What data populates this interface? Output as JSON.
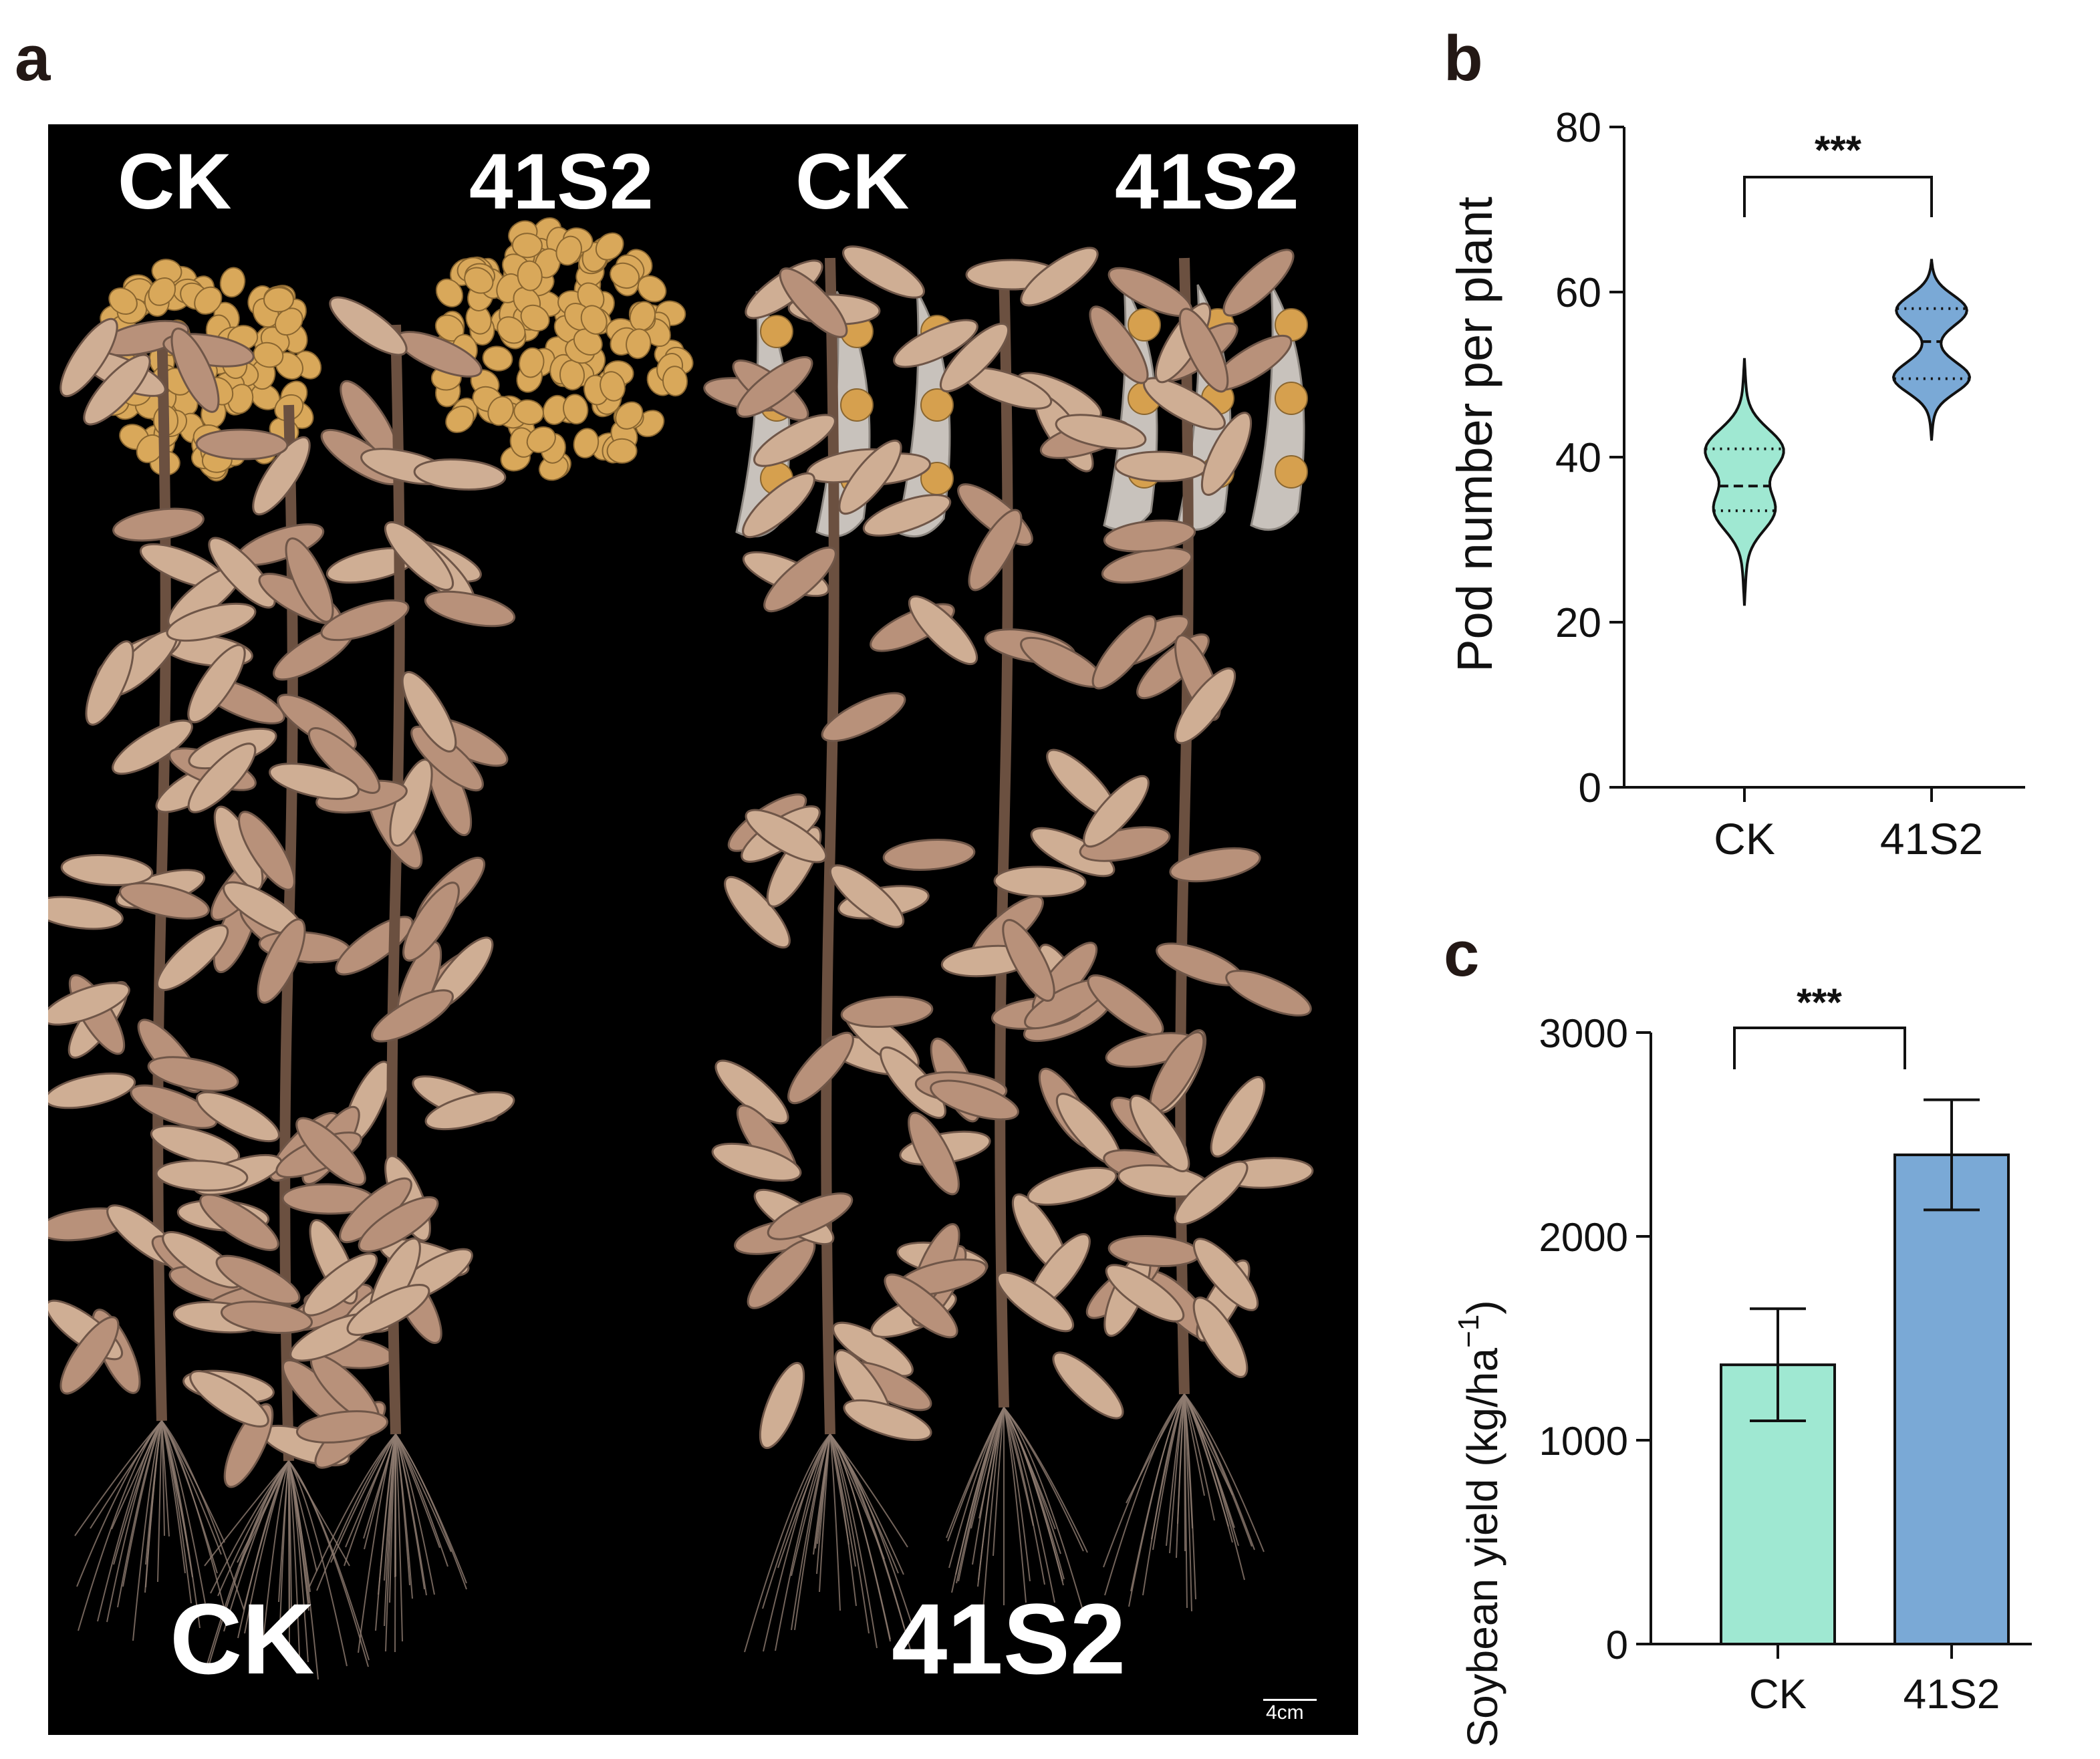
{
  "panels": {
    "a": "a",
    "b": "b",
    "c": "c"
  },
  "photo": {
    "top_labels": [
      "CK",
      "41S2",
      "CK",
      "41S2"
    ],
    "bottom_labels": [
      "CK",
      "41S2"
    ],
    "scale_bar": "4cm"
  },
  "colors": {
    "ck": "#9fe8d2",
    "s41": "#7aa9d6",
    "axis": "#111111"
  },
  "chart_data": [
    {
      "type": "violin",
      "ylabel": "Pod number per plant",
      "ylim": [
        0,
        80
      ],
      "yticks": [
        0,
        20,
        40,
        60,
        80
      ],
      "categories": [
        "CK",
        "41S2"
      ],
      "series": [
        {
          "category": "CK",
          "median": 36.5,
          "q1": 33.5,
          "q3": 41,
          "min": 22,
          "max": 52
        },
        {
          "category": "41S2",
          "median": 54,
          "q1": 49.5,
          "q3": 58,
          "min": 42,
          "max": 64
        }
      ],
      "significance": "***"
    },
    {
      "type": "bar",
      "ylabel": "Soybean yield (kg/ha",
      "ylabel_sup": "−1",
      "ylabel_end": ")",
      "ylim": [
        0,
        3000
      ],
      "yticks": [
        0,
        1000,
        2000,
        3000
      ],
      "categories": [
        "CK",
        "41S2"
      ],
      "values": [
        1370,
        2400
      ],
      "errors": [
        275,
        270
      ],
      "significance": "***"
    }
  ]
}
